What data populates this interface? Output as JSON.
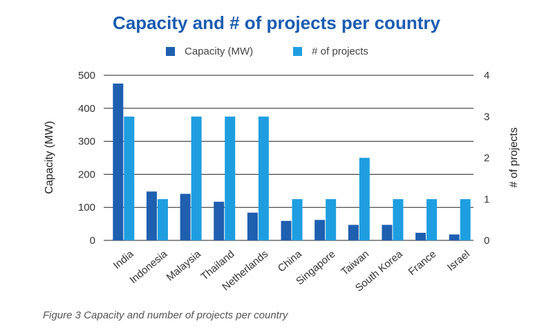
{
  "chart_data": {
    "type": "bar",
    "title": "Capacity and # of projects per country",
    "categories": [
      "India",
      "Indonesia",
      "Malaysia",
      "Thailand",
      "Netherlands",
      "China",
      "Singapore",
      "Taiwan",
      "South Korea",
      "France",
      "Israel"
    ],
    "series": [
      {
        "name": "Capacity (MW)",
        "axis": "left",
        "color": "#1f5fb0",
        "values": [
          475,
          148,
          141,
          117,
          84,
          59,
          62,
          47,
          47,
          23,
          18
        ]
      },
      {
        "name": "# of projects",
        "axis": "right",
        "color": "#1e9ee0",
        "values": [
          3,
          1,
          3,
          3,
          3,
          1,
          1,
          2,
          1,
          1,
          1
        ]
      }
    ],
    "ylabel": "Capacity (MW)",
    "ylabel_right": "# of projects",
    "ylim": [
      0,
      500
    ],
    "ylim_right": [
      0,
      4
    ],
    "yticks": [
      0,
      100,
      200,
      300,
      400,
      500
    ],
    "yticks_right": [
      0,
      1,
      2,
      3,
      4
    ],
    "grid": true,
    "legend": "top-center"
  },
  "caption": "Figure 3 Capacity and number of projects per country"
}
